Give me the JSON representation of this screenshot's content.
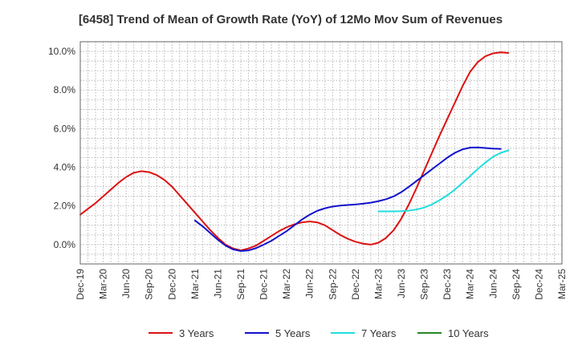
{
  "chart_data": {
    "type": "line",
    "title": "[6458]  Trend of Mean of Growth Rate (YoY) of 12Mo Mov Sum of Revenues",
    "xlabel": "",
    "ylabel": "",
    "ylim": [
      -1.0,
      10.5
    ],
    "yticks": [
      0,
      2,
      4,
      6,
      8,
      10
    ],
    "ytick_labels": [
      "0.0%",
      "2.0%",
      "4.0%",
      "6.0%",
      "8.0%",
      "10.0%"
    ],
    "x_tick_labels": [
      "Dec-19",
      "Mar-20",
      "Jun-20",
      "Sep-20",
      "Dec-20",
      "Mar-21",
      "Jun-21",
      "Sep-21",
      "Dec-21",
      "Mar-22",
      "Jun-22",
      "Sep-22",
      "Dec-22",
      "Mar-23",
      "Jun-23",
      "Sep-23",
      "Dec-23",
      "Mar-24",
      "Jun-24",
      "Sep-24",
      "Dec-24",
      "Mar-25"
    ],
    "x_start": "Dec-19",
    "grid": true,
    "legend_position": "bottom",
    "series": [
      {
        "name": "3 Years",
        "color": "#dd1111",
        "start_index": 0,
        "values": [
          1.55,
          1.85,
          2.15,
          2.5,
          2.85,
          3.2,
          3.5,
          3.72,
          3.8,
          3.75,
          3.6,
          3.35,
          3.0,
          2.55,
          2.1,
          1.65,
          1.2,
          0.75,
          0.35,
          0.0,
          -0.2,
          -0.3,
          -0.2,
          -0.05,
          0.2,
          0.45,
          0.7,
          0.9,
          1.05,
          1.15,
          1.2,
          1.15,
          1.0,
          0.75,
          0.5,
          0.3,
          0.15,
          0.05,
          0.0,
          0.1,
          0.35,
          0.75,
          1.35,
          2.1,
          2.95,
          3.85,
          4.75,
          5.65,
          6.5,
          7.35,
          8.2,
          8.95,
          9.45,
          9.75,
          9.9,
          9.95,
          9.92
        ]
      },
      {
        "name": "5 Years",
        "color": "#1111cc",
        "start_index": 15,
        "values": [
          1.25,
          0.95,
          0.6,
          0.25,
          -0.05,
          -0.25,
          -0.33,
          -0.3,
          -0.18,
          0.0,
          0.2,
          0.45,
          0.7,
          1.0,
          1.3,
          1.55,
          1.75,
          1.88,
          1.97,
          2.02,
          2.05,
          2.08,
          2.12,
          2.17,
          2.25,
          2.35,
          2.5,
          2.72,
          3.0,
          3.3,
          3.6,
          3.9,
          4.2,
          4.5,
          4.75,
          4.93,
          5.02,
          5.03,
          5.0,
          4.97,
          4.95
        ]
      },
      {
        "name": "7 Years",
        "color": "#22dddd",
        "start_index": 39,
        "values": [
          1.72,
          1.72,
          1.72,
          1.73,
          1.76,
          1.82,
          1.92,
          2.08,
          2.3,
          2.55,
          2.85,
          3.2,
          3.55,
          3.92,
          4.25,
          4.55,
          4.75,
          4.88
        ]
      },
      {
        "name": "10 Years",
        "color": "#228822",
        "start_index": 0,
        "values": []
      }
    ]
  }
}
